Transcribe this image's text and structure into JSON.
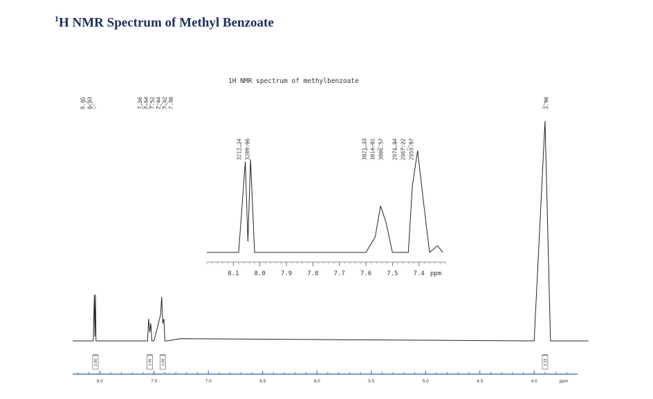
{
  "page": {
    "title_sup": "1",
    "title_text": "H NMR Spectrum of Methyl Benzoate"
  },
  "colors": {
    "title": "#1f2f5a",
    "trace": "#222222",
    "axis_blue": "#2f5fa8"
  },
  "chart_data": [
    {
      "type": "line",
      "x": [
        8.25,
        8.06,
        8.05,
        8.045,
        8.04,
        8.035,
        8.03,
        8.02,
        7.56,
        7.55,
        7.54,
        7.53,
        7.52,
        7.5,
        7.44,
        7.43,
        7.42,
        7.41,
        7.4,
        7.38,
        7.26,
        4.0,
        3.9,
        3.85,
        3.5
      ],
      "y": [
        0,
        0,
        0.21,
        0.02,
        0.21,
        0,
        0,
        0,
        0,
        0.1,
        0.04,
        0.08,
        0,
        0,
        0.12,
        0.2,
        0.08,
        0.1,
        0,
        0,
        0.01,
        0,
        1.0,
        0,
        0
      ],
      "xlabel": "ppm",
      "xlim": [
        8.25,
        3.6
      ],
      "x_ticks": [
        "8.0",
        "7.5",
        "7.0",
        "6.5",
        "6.0",
        "5.5",
        "5.0",
        "4.5",
        "4.0"
      ],
      "peak_labels_left": [
        "8.05",
        "8.03"
      ],
      "peak_labels_mid": [
        "7.56",
        "7.54",
        "7.52",
        "7.44",
        "7.42",
        "7.40"
      ],
      "peak_labels_right": [
        "3.90"
      ],
      "integrals": [
        {
          "x": 8.04,
          "label": "2.00"
        },
        {
          "x": 7.54,
          "label": "1.06"
        },
        {
          "x": 7.42,
          "label": "2.08"
        },
        {
          "x": 3.9,
          "label": "3.23"
        }
      ]
    },
    {
      "type": "line",
      "title": "1H NMR spectrum of methylbenzoate",
      "xlabel": "ppm",
      "xlim": [
        8.2,
        7.3
      ],
      "x_ticks": [
        "8.1",
        "8.0",
        "7.9",
        "7.8",
        "7.7",
        "7.6",
        "7.5",
        "7.4"
      ],
      "x": [
        8.2,
        8.08,
        8.055,
        8.045,
        8.035,
        8.02,
        7.6,
        7.565,
        7.545,
        7.525,
        7.5,
        7.44,
        7.425,
        7.405,
        7.385,
        7.36,
        7.33,
        7.31
      ],
      "y": [
        0,
        0,
        0.82,
        0.1,
        0.84,
        0,
        0,
        0.14,
        0.42,
        0.28,
        0,
        0,
        0.6,
        0.92,
        0.5,
        0,
        0.06,
        0
      ],
      "peak_labels_left": [
        "3217.24",
        "3209.96"
      ],
      "peak_labels_mid": [
        "3021.33",
        "3014.01",
        "3006.57"
      ],
      "peak_labels_right": [
        "2974.94",
        "2967.22",
        "2959.67"
      ]
    }
  ]
}
